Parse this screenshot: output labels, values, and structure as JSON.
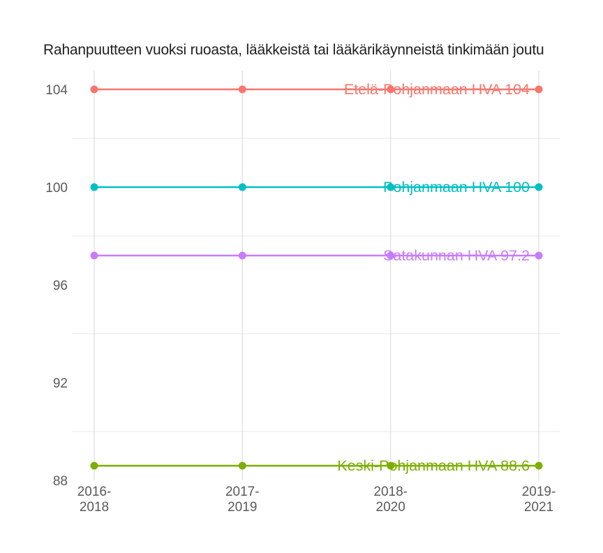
{
  "chart_data": {
    "type": "line",
    "title": "Rahanpuutteen vuoksi ruoasta, lääkkeistä tai lääkärikäynneistä tinkimään joutu",
    "categories": [
      "2016-2018",
      "2017-2019",
      "2018-2020",
      "2019-2021"
    ],
    "x_tick_lines": [
      [
        "2016-",
        "2018"
      ],
      [
        "2017-",
        "2019"
      ],
      [
        "2018-",
        "2020"
      ],
      [
        "2019-",
        "2021"
      ]
    ],
    "series": [
      {
        "name": "Etelä-Pohjanmaan HVA",
        "label": "Etelä-Pohjanmaan HVA 104",
        "values": [
          104,
          104,
          104,
          104
        ],
        "color": "#F8766D"
      },
      {
        "name": "Pohjanmaan HVA",
        "label": "Pohjanmaan HVA 100",
        "values": [
          100,
          100,
          100,
          100
        ],
        "color": "#00BFC4"
      },
      {
        "name": "Satakunnan HVA",
        "label": "Satakunnan HVA 97.2",
        "values": [
          97.2,
          97.2,
          97.2,
          97.2
        ],
        "color": "#C77CFF"
      },
      {
        "name": "Keski-Pohjanmaan HVA",
        "label": "Keski-Pohjanmaan HVA 88.6",
        "values": [
          88.6,
          88.6,
          88.6,
          88.6
        ],
        "color": "#7CAE00"
      }
    ],
    "y_ticks": [
      104,
      100,
      96,
      92,
      88
    ],
    "y_gridlines": [
      102,
      98,
      94,
      90
    ],
    "ylim": [
      88,
      104.8
    ],
    "xlabel": "",
    "ylabel": "",
    "grid": true,
    "legend": "inline-right-of-lines",
    "colors": {
      "axis_text": "#5a5a5a",
      "vertical_grid": "#d7d7d7",
      "horizontal_grid": "#e8e8e8",
      "title_text": "#1f1f1f",
      "background": "#ffffff"
    }
  }
}
